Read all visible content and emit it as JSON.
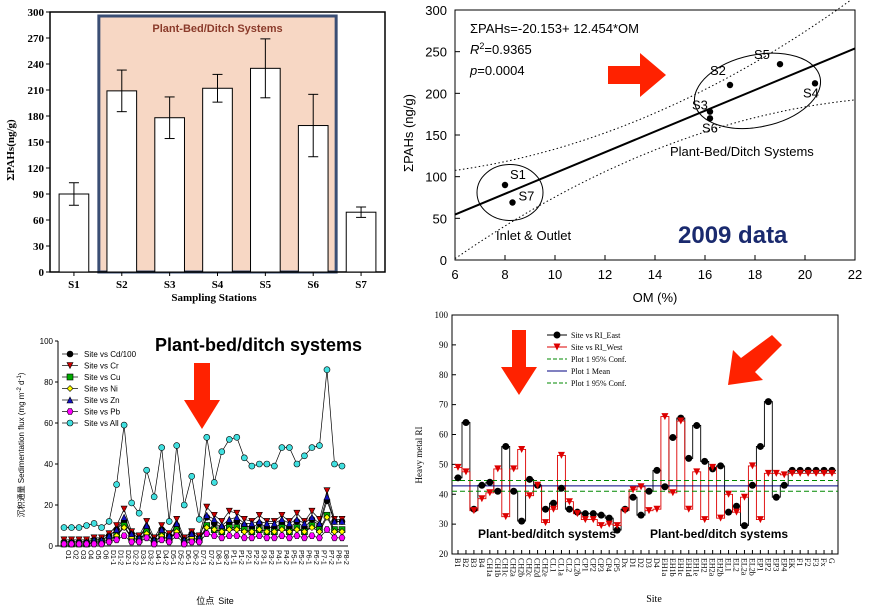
{
  "chart_data": [
    {
      "type": "bar",
      "title": "",
      "xlabel": "Sampling Stations",
      "ylabel": "ΣPAHs(ng/g)",
      "ylim": [
        0,
        300
      ],
      "yticks": [
        "0",
        "30",
        "60",
        "90",
        "120",
        "150",
        "180",
        "210",
        "240",
        "270",
        "300"
      ],
      "categories": [
        "S1",
        "S2",
        "S3",
        "S4",
        "S5",
        "S6",
        "S7"
      ],
      "values": [
        90,
        209,
        178,
        212,
        235,
        169,
        69
      ],
      "errors": [
        13,
        24,
        24,
        16,
        34,
        36,
        6
      ],
      "highlight_label": "Plant-Bed/Ditch Systems",
      "highlight_range": [
        "S2",
        "S6"
      ],
      "colors": {
        "highlight_fill": "#f7d7c4",
        "highlight_border": "#3a4e74",
        "bar_fill": "#ffffff",
        "highlight_text": "#8a3a2a"
      }
    },
    {
      "type": "scatter",
      "xlabel": "OM (%)",
      "ylabel": "ΣPAHs (ng/g)",
      "xlim": [
        6,
        22
      ],
      "ylim": [
        0,
        300
      ],
      "xticks": [
        "6",
        "8",
        "10",
        "12",
        "14",
        "16",
        "18",
        "20",
        "22"
      ],
      "yticks": [
        "0",
        "50",
        "100",
        "150",
        "200",
        "250",
        "300"
      ],
      "points": [
        {
          "label": "S1",
          "x": 8.0,
          "y": 90
        },
        {
          "label": "S7",
          "x": 8.3,
          "y": 69
        },
        {
          "label": "S2",
          "x": 17.0,
          "y": 210
        },
        {
          "label": "S3",
          "x": 16.2,
          "y": 178
        },
        {
          "label": "S4",
          "x": 20.4,
          "y": 212
        },
        {
          "label": "S5",
          "x": 19.0,
          "y": 235
        },
        {
          "label": "S6",
          "x": 16.2,
          "y": 170
        }
      ],
      "equation": "ΣPAHs=-20.153+ 12.454*OM",
      "r2_prefix": "R",
      "r2_sup": "2",
      "r2_value": "=0.9365",
      "p_prefix": "p",
      "p_value": "=0.0004",
      "fit": {
        "intercept": -20.153,
        "slope": 12.454
      },
      "group_labels": [
        "Plant-Bed/Ditch Systems",
        "Inlet & Outlet"
      ],
      "year_label": "2009 data",
      "colors": {
        "year_label": "#1a2a6e",
        "arrow": "#ff2200"
      }
    },
    {
      "type": "line",
      "title": "Plant-bed/ditch systems",
      "xlabel_cn": "位点",
      "xlabel_en": "Site",
      "ylabel_cn": "沉积通量",
      "ylabel_en": "Sedimentation flux (mg m",
      "ylabel_sup1": "-2",
      "ylabel_mid": " d",
      "ylabel_sup2": "-1",
      "ylabel_end": ")",
      "ylim": [
        0,
        100
      ],
      "yticks": [
        "0",
        "20",
        "40",
        "60",
        "80",
        "100"
      ],
      "x": [
        "O1",
        "O2",
        "O3",
        "O4",
        "O5",
        "O6",
        "D1-1",
        "D1-2",
        "D2-1",
        "D2-2",
        "D3-1",
        "D3-2",
        "D4-1",
        "D4-2",
        "D5-1",
        "D5-2",
        "D6-1",
        "D6-2",
        "D7-1",
        "D7-2",
        "D8-1",
        "D8-2",
        "P1-1",
        "P1-2",
        "P2-1",
        "P2-2",
        "P3-1",
        "P3-2",
        "P4-1",
        "P4-2",
        "P5-1",
        "P5-2",
        "P6-1",
        "P6-2",
        "P7-1",
        "P7-2",
        "P8-1",
        "P8-2"
      ],
      "series": [
        {
          "name": "Site vs Cd/100",
          "values": [
            2,
            2,
            2,
            2,
            3,
            3,
            5,
            8,
            12,
            6,
            4,
            9,
            3,
            8,
            5,
            10,
            3,
            6,
            4,
            14,
            11,
            9,
            11,
            12,
            10,
            9,
            11,
            9,
            9,
            11,
            9,
            12,
            9,
            13,
            10,
            22,
            12,
            12
          ]
        },
        {
          "name": "Site vs Cr",
          "values": [
            3,
            3,
            3,
            3,
            4,
            4,
            6,
            10,
            18,
            7,
            5,
            12,
            4,
            10,
            6,
            13,
            4,
            7,
            5,
            19,
            15,
            12,
            17,
            16,
            13,
            12,
            15,
            12,
            12,
            15,
            12,
            16,
            12,
            17,
            13,
            27,
            13,
            13
          ]
        },
        {
          "name": "Site vs Cu",
          "values": [
            1,
            1,
            1,
            1,
            2,
            2,
            3,
            5,
            10,
            4,
            3,
            7,
            2,
            5,
            3,
            8,
            2,
            4,
            3,
            10,
            8,
            7,
            9,
            9,
            8,
            7,
            8,
            7,
            7,
            9,
            7,
            9,
            7,
            10,
            8,
            15,
            8,
            8
          ]
        },
        {
          "name": "Site vs Ni",
          "values": [
            1,
            1,
            1,
            1,
            2,
            2,
            3,
            5,
            9,
            4,
            3,
            6,
            2,
            5,
            3,
            7,
            2,
            4,
            3,
            9,
            8,
            7,
            8,
            8,
            7,
            7,
            8,
            7,
            7,
            8,
            7,
            8,
            7,
            9,
            7,
            14,
            7,
            7
          ]
        },
        {
          "name": "Site vs Zn",
          "values": [
            2,
            2,
            2,
            2,
            3,
            3,
            5,
            8,
            14,
            6,
            4,
            10,
            3,
            8,
            5,
            11,
            3,
            6,
            4,
            15,
            13,
            10,
            13,
            14,
            11,
            11,
            12,
            11,
            11,
            13,
            11,
            13,
            11,
            14,
            11,
            24,
            12,
            12
          ]
        },
        {
          "name": "Site vs Pb",
          "values": [
            1,
            1,
            1,
            1,
            1,
            1,
            2,
            3,
            5,
            2,
            2,
            4,
            1,
            3,
            2,
            5,
            1,
            2,
            2,
            6,
            5,
            4,
            5,
            5,
            4,
            4,
            5,
            4,
            4,
            5,
            4,
            5,
            4,
            5,
            4,
            8,
            4,
            4
          ]
        },
        {
          "name": "Site vs All",
          "values": [
            9,
            9,
            9,
            10,
            11,
            9,
            12,
            30,
            59,
            21,
            16,
            37,
            24,
            48,
            12,
            49,
            20,
            34,
            13,
            53,
            31,
            46,
            52,
            53,
            43,
            39,
            40,
            40,
            39,
            48,
            48,
            40,
            44,
            48,
            49,
            86,
            40,
            39
          ]
        }
      ],
      "colors": {
        "cd": "#000000",
        "cr": "#cc0000",
        "cu": "#00aa00",
        "ni": "#ffff00",
        "zn": "#1010c0",
        "pb": "#ff00ff",
        "all": "#40e0e0",
        "arrow": "#ff2200"
      }
    },
    {
      "type": "line",
      "xlabel": "Site",
      "ylabel": "Heavy metal RI",
      "ylim": [
        20,
        100
      ],
      "yticks": [
        "20",
        "30",
        "40",
        "50",
        "60",
        "70",
        "80",
        "90",
        "100"
      ],
      "x": [
        "B1",
        "B2",
        "B3",
        "B4",
        "CH1a",
        "CH1b",
        "CH1c",
        "CH2a",
        "CH2b",
        "CH2c",
        "CH2d",
        "CH2e",
        "CL1",
        "CL1a",
        "CL2",
        "CL2b",
        "CP1",
        "CP2",
        "CP3",
        "CP4",
        "CP5",
        "Dx",
        "D1",
        "D2",
        "D3",
        "D4",
        "EH1a",
        "EH1b",
        "EH1c",
        "EH1d",
        "EH1e",
        "EH2",
        "EH2a",
        "EH2b",
        "EL1",
        "EL2",
        "EL2a",
        "EL2b",
        "EP1",
        "EP2",
        "EP3",
        "EP4",
        "EK",
        "F1",
        "F2",
        "F3",
        "Fx",
        "G"
      ],
      "series": [
        {
          "name": "Site vs RI_East",
          "values": [
            45.5,
            64,
            35,
            43,
            44,
            41,
            56,
            41,
            31,
            45,
            43,
            35,
            37,
            42,
            35,
            34,
            33.5,
            33.5,
            33,
            32,
            28,
            35,
            39,
            33,
            41,
            48,
            42.5,
            59,
            65.5,
            52,
            63,
            51,
            48.5,
            49.5,
            34,
            36,
            29.5,
            43,
            56,
            71,
            39,
            43,
            48,
            48,
            48,
            48,
            48,
            48
          ]
        },
        {
          "name": "Site vs RI_West",
          "values": [
            49,
            47.5,
            34.5,
            38.5,
            40.5,
            48.5,
            32.5,
            48.5,
            55,
            39.5,
            43,
            30.5,
            35,
            53,
            37.5,
            33.5,
            31.5,
            31.5,
            29.5,
            30,
            29.5,
            34.5,
            41.5,
            42.5,
            34.5,
            35,
            66,
            40.5,
            64.5,
            35,
            47.5,
            31.5,
            49,
            32,
            40,
            34,
            39,
            49.5,
            31.5,
            47,
            47,
            46.5,
            47,
            47,
            47,
            47,
            47,
            47
          ]
        },
        {
          "name": "Plot 1 95% Conf.",
          "value": 44.6
        },
        {
          "name": "Plot 1 Mean",
          "value": 42.8
        },
        {
          "name": "Plot 1 95% Conf.",
          "value": 41.0
        }
      ],
      "group_labels": [
        "Plant-bed/ditch systems",
        "Plant-bed/ditch systems"
      ],
      "colors": {
        "east": "#000000",
        "west": "#dd0000",
        "conf": "#008800",
        "mean": "#000080",
        "arrow": "#ff2200"
      }
    }
  ]
}
